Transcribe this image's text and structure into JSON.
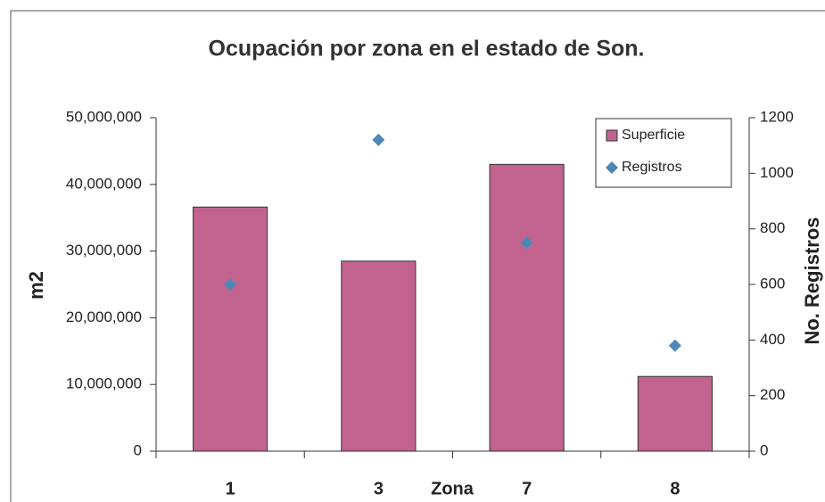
{
  "chart_data": {
    "type": "bar",
    "title": "Ocupación por zona en el estado de Son.",
    "x_label": "Zona",
    "y_label": "m2",
    "y2_label": "No. Registros",
    "categories": [
      "1",
      "3",
      "7",
      "8"
    ],
    "series": [
      {
        "name": "Superficie",
        "type": "bar",
        "color": "#c2628f",
        "values": [
          36600000,
          28500000,
          43000000,
          11200000
        ]
      },
      {
        "name": "Registros",
        "type": "scatter",
        "axis": "y2",
        "color": "#4f86b8",
        "values": [
          600,
          1120,
          750,
          380
        ]
      }
    ],
    "ylim": [
      0,
      50000000
    ],
    "yticks": [
      0,
      {
        "value": 10000000,
        "label": "10,000,000"
      },
      {
        "value": 20000000,
        "label": "20,000,000"
      },
      {
        "value": 30000000,
        "label": "30,000,000"
      },
      {
        "value": 40000000,
        "label": "40,000,000"
      },
      {
        "value": 50000000,
        "label": "50,000,000"
      }
    ],
    "y2lim": [
      0,
      1200
    ],
    "y2ticks": [
      0,
      200,
      400,
      600,
      800,
      1000,
      1200
    ],
    "grid": false,
    "legend": "top-right"
  }
}
